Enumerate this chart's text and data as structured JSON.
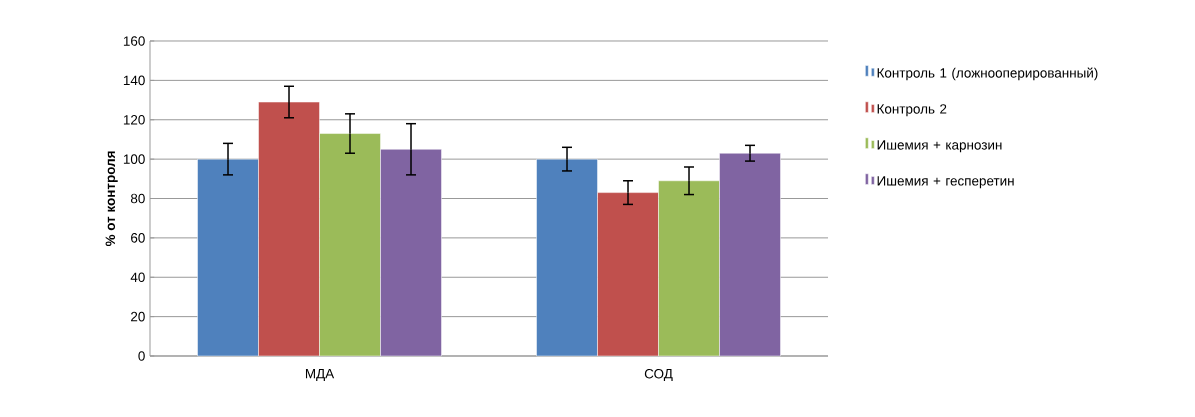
{
  "chart_data": {
    "type": "bar",
    "ylabel": "% от контроля",
    "categories": [
      "МДА",
      "СОД"
    ],
    "series": [
      {
        "name": "Контроль 1 (ложнооперированный)",
        "color": "#4f81bd",
        "values": [
          100,
          100
        ],
        "errors": [
          8,
          6
        ]
      },
      {
        "name": "Контроль 2",
        "color": "#c0504d",
        "values": [
          129,
          83
        ],
        "errors": [
          8,
          6
        ]
      },
      {
        "name": "Ишемия + карнозин",
        "color": "#9bbb59",
        "values": [
          113,
          89
        ],
        "errors": [
          10,
          7
        ]
      },
      {
        "name": "Ишемия + гесперетин",
        "color": "#8064a2",
        "values": [
          105,
          103
        ],
        "errors": [
          13,
          4
        ]
      }
    ],
    "ylim": [
      0,
      160
    ],
    "yticks": [
      0,
      20,
      40,
      60,
      80,
      100,
      120,
      140,
      160
    ],
    "grid": "y",
    "legend": "right"
  }
}
